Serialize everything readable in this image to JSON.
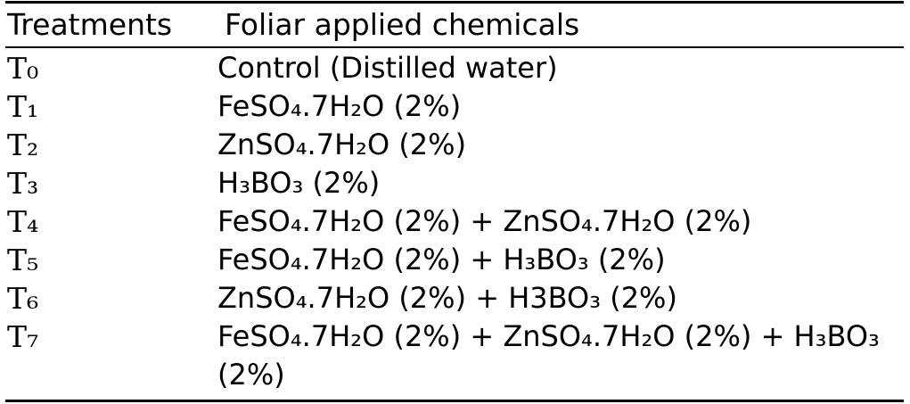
{
  "header": {
    "treatments_label": "Treatments",
    "chemicals_label": "Foliar applied chemicals"
  },
  "rows": [
    {
      "treatment": "T₀",
      "chemical": "Control (Distilled water)"
    },
    {
      "treatment": "T₁",
      "chemical": "FeSO₄.7H₂O (2%)"
    },
    {
      "treatment": "T₂",
      "chemical": "ZnSO₄.7H₂O (2%)"
    },
    {
      "treatment": "T₃",
      "chemical": "H₃BO₃ (2%)"
    },
    {
      "treatment": "T₄",
      "chemical": "FeSO₄.7H₂O (2%) + ZnSO₄.7H₂O (2%)"
    },
    {
      "treatment": "T₅",
      "chemical": "FeSO₄.7H₂O (2%) + H₃BO₃ (2%)"
    },
    {
      "treatment": "T₆",
      "chemical": "ZnSO₄.7H₂O (2%) + H3BO₃ (2%)"
    },
    {
      "treatment": "T₇",
      "chemical": "FeSO₄.7H₂O (2%) + ZnSO₄.7H₂O (2%) + H₃BO₃ (2%)"
    }
  ]
}
